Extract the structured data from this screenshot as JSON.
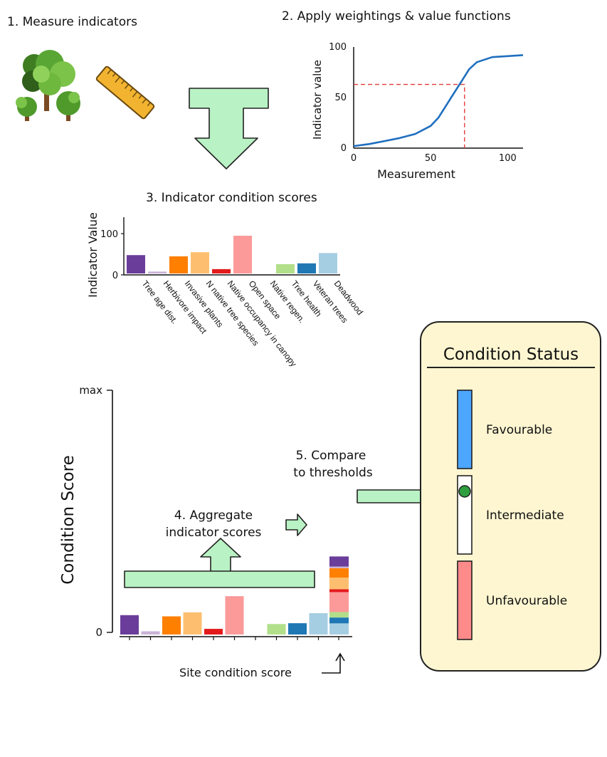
{
  "steps": {
    "step1": "1. Measure indicators",
    "step2": "2.  Apply weightings & value functions",
    "step3": "3.  Indicator condition scores",
    "step4_line1": "4. Aggregate",
    "step4_line2": "indicator scores",
    "step5_line1": "5. Compare",
    "step5_line2": "to thresholds",
    "site_score": "Site condition score"
  },
  "icons": [
    "trees-icon",
    "ruler-icon"
  ],
  "value_function": {
    "type": "line",
    "xlabel": "Measurement",
    "ylabel": "Indicator value",
    "x_ticks": [
      "0",
      "50",
      "100"
    ],
    "y_ticks": [
      "0",
      "50",
      "100"
    ],
    "xlim": [
      0,
      110
    ],
    "ylim": [
      0,
      100
    ],
    "x": [
      0,
      10,
      20,
      30,
      40,
      50,
      55,
      60,
      65,
      70,
      75,
      80,
      90,
      100,
      110
    ],
    "y": [
      2,
      4,
      7,
      10,
      14,
      22,
      30,
      42,
      54,
      66,
      78,
      85,
      90,
      91,
      92
    ],
    "threshold_x": 72,
    "threshold_y": 63,
    "line_color": "#1f6fbf",
    "threshold_color": "#e23b3b"
  },
  "indicator_chart": {
    "type": "bar",
    "ylabel": "Indicator Value",
    "y_ticks": [
      "0",
      "100"
    ],
    "ylim": [
      0,
      140
    ],
    "categories": [
      "Tree age dist.",
      "Herbivore impact",
      "Invasive plants",
      "N native tree species",
      "Native occupancy in canopy",
      "Open space",
      "Native regen.",
      "Tree health",
      "Veteran trees",
      "Deadwood"
    ],
    "values": [
      48,
      8,
      45,
      55,
      14,
      95,
      0,
      26,
      28,
      53
    ],
    "colors": [
      "#6a3d9a",
      "#cab2d6",
      "#ff7f00",
      "#fdbf6f",
      "#e31a1c",
      "#fb9a99",
      "#33a02c",
      "#b2df8a",
      "#1f78b4",
      "#a6cee3"
    ]
  },
  "aggregate_chart": {
    "type": "bar",
    "ylabel": "Condition Score",
    "y_ticks": [
      "0",
      "max"
    ],
    "ylim": [
      0,
      600
    ],
    "values": [
      48,
      8,
      45,
      55,
      14,
      95,
      0,
      26,
      28,
      53
    ],
    "stack_order": [
      9,
      8,
      7,
      6,
      5,
      4,
      3,
      2,
      1,
      0
    ]
  },
  "status_panel": {
    "title": "Condition Status",
    "levels": [
      {
        "label": "Favourable",
        "color": "#4da6ff"
      },
      {
        "label": "Intermediate",
        "color": "#ffffff"
      },
      {
        "label": "Unfavourable",
        "color": "#ff8a8a"
      }
    ],
    "panel_color": "#fdf6d1",
    "marker_color": "#2e9e3e",
    "marker_level": "Intermediate"
  },
  "arrow_color": "#b9f2c4"
}
